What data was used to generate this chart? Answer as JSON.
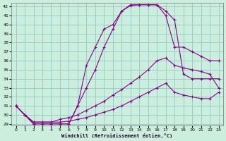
{
  "xlabel": "Windchill (Refroidissement éolien,°C)",
  "bg_color": "#cceedd",
  "grid_color": "#99cccc",
  "line_color": "#880088",
  "xlim": [
    -0.5,
    23.5
  ],
  "ylim": [
    28.8,
    42.4
  ],
  "yticks": [
    29,
    30,
    31,
    32,
    33,
    34,
    35,
    36,
    37,
    38,
    39,
    40,
    41,
    42
  ],
  "xticks": [
    0,
    1,
    2,
    3,
    4,
    5,
    6,
    7,
    8,
    9,
    10,
    11,
    12,
    13,
    14,
    15,
    16,
    17,
    18,
    19,
    20,
    21,
    22,
    23
  ],
  "line1_x": [
    0,
    1,
    2,
    3,
    4,
    5,
    6,
    7,
    8,
    9,
    10,
    11,
    12,
    13,
    14,
    15,
    16,
    17,
    18,
    19,
    20,
    21,
    22,
    23
  ],
  "line1_y": [
    31.0,
    30.0,
    29.0,
    29.0,
    29.0,
    29.0,
    29.0,
    31.0,
    35.5,
    37.5,
    39.5,
    40.0,
    41.5,
    42.1,
    42.2,
    42.2,
    42.2,
    41.0,
    37.5,
    37.5,
    37.0,
    36.5,
    36.0,
    36.0
  ],
  "line2_x": [
    0,
    1,
    2,
    3,
    4,
    5,
    6,
    7,
    8,
    9,
    10,
    11,
    12,
    13,
    14,
    15,
    16,
    17,
    18,
    19,
    20,
    21,
    22,
    23
  ],
  "line2_y": [
    31.0,
    30.0,
    29.0,
    29.0,
    29.0,
    29.0,
    29.0,
    31.0,
    33.0,
    35.0,
    37.5,
    39.5,
    41.5,
    42.2,
    42.2,
    42.2,
    42.2,
    41.5,
    40.5,
    34.5,
    34.0,
    34.0,
    34.0,
    34.0
  ],
  "line3_x": [
    0,
    1,
    2,
    3,
    4,
    5,
    6,
    7,
    8,
    9,
    10,
    11,
    12,
    13,
    14,
    15,
    16,
    17,
    18,
    19,
    20,
    21,
    22,
    23
  ],
  "line3_y": [
    31.0,
    30.0,
    29.2,
    29.2,
    29.2,
    29.5,
    29.7,
    30.0,
    30.5,
    31.0,
    31.5,
    32.2,
    32.8,
    33.5,
    34.2,
    35.0,
    36.0,
    36.3,
    35.5,
    35.2,
    35.0,
    34.8,
    34.5,
    33.0
  ],
  "line4_x": [
    0,
    1,
    2,
    3,
    4,
    5,
    6,
    7,
    8,
    9,
    10,
    11,
    12,
    13,
    14,
    15,
    16,
    17,
    18,
    19,
    20,
    21,
    22,
    23
  ],
  "line4_y": [
    31.0,
    30.0,
    29.2,
    29.2,
    29.2,
    29.2,
    29.3,
    29.5,
    29.7,
    30.0,
    30.3,
    30.6,
    31.0,
    31.5,
    32.0,
    32.5,
    33.0,
    33.5,
    32.5,
    32.2,
    32.0,
    31.8,
    31.8,
    32.5
  ],
  "marker": "+"
}
